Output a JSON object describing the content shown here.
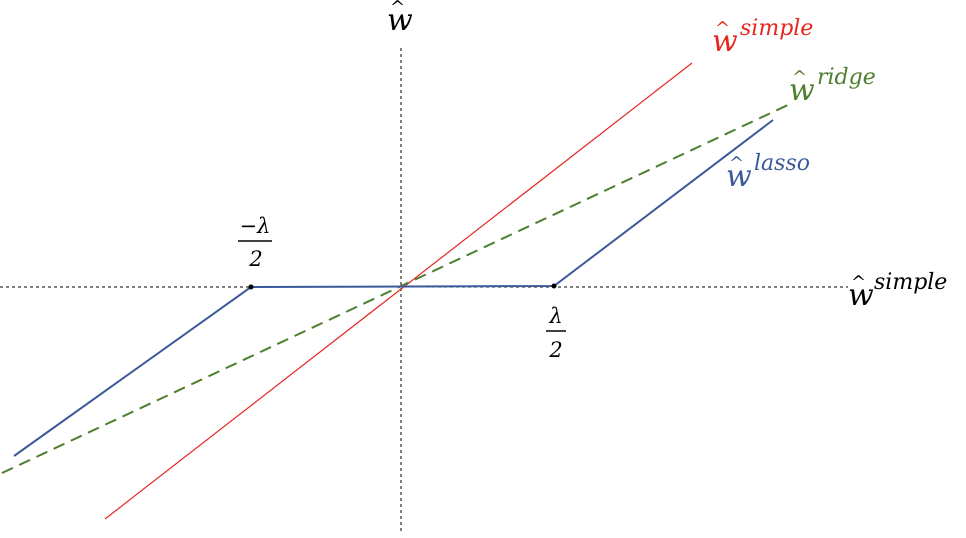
{
  "axes": {
    "y_label": {
      "base": "w",
      "hat": "^"
    },
    "x_label": {
      "base": "w",
      "hat": "^",
      "sup": "simple"
    }
  },
  "lines": {
    "simple": {
      "base": "w",
      "hat": "^",
      "sup": "simple",
      "color": "#e8261e"
    },
    "ridge": {
      "base": "w",
      "hat": "^",
      "sup": "ridge",
      "color": "#4e7f2e"
    },
    "lasso": {
      "base": "w",
      "hat": "^",
      "sup": "lasso",
      "color": "#3b5a9a"
    }
  },
  "thresholds": {
    "neg": {
      "numerator": "−λ",
      "denominator": "2"
    },
    "pos": {
      "numerator": "λ",
      "denominator": "2"
    }
  },
  "colors": {
    "axis": "#000000",
    "simple": "#e8261e",
    "ridge": "#4e7f2e",
    "lasso": "#3b5a9a"
  }
}
